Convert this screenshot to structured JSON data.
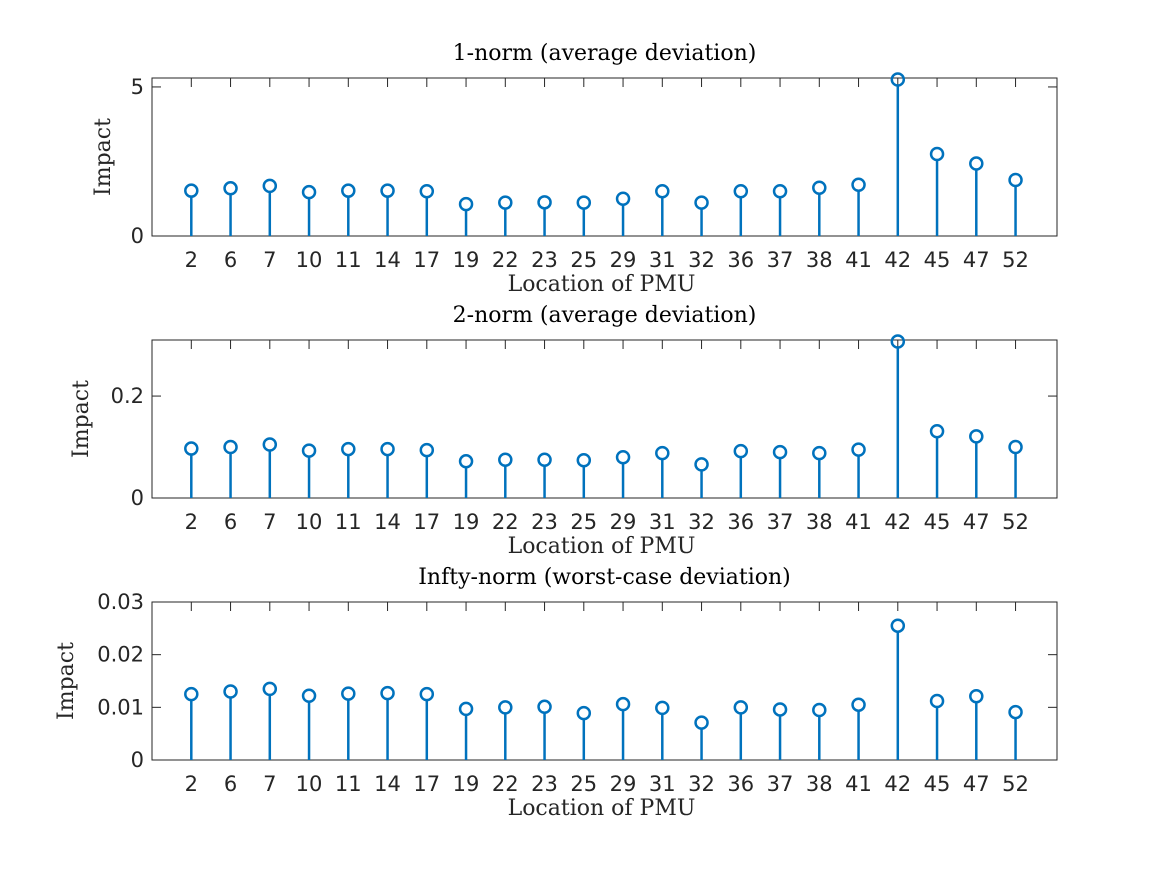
{
  "chart_data": [
    {
      "type": "stem",
      "title": "1-norm (average deviation)",
      "xlabel": "Location of PMU",
      "ylabel": "Impact",
      "categories": [
        "2",
        "6",
        "7",
        "10",
        "11",
        "14",
        "17",
        "19",
        "22",
        "23",
        "25",
        "29",
        "31",
        "32",
        "36",
        "37",
        "38",
        "41",
        "42",
        "45",
        "47",
        "52"
      ],
      "values": [
        1.52,
        1.6,
        1.68,
        1.47,
        1.52,
        1.52,
        1.5,
        1.07,
        1.12,
        1.13,
        1.12,
        1.25,
        1.5,
        1.12,
        1.5,
        1.5,
        1.62,
        1.72,
        5.25,
        2.75,
        2.43,
        1.88
      ],
      "ylim": [
        0,
        5.3
      ],
      "yticks": [
        0,
        5
      ],
      "ytick_labels": [
        "0",
        "5"
      ],
      "color": "#0072bd"
    },
    {
      "type": "stem",
      "title": "2-norm (average deviation)",
      "xlabel": "Location of PMU",
      "ylabel": "Impact",
      "categories": [
        "2",
        "6",
        "7",
        "10",
        "11",
        "14",
        "17",
        "19",
        "22",
        "23",
        "25",
        "29",
        "31",
        "32",
        "36",
        "37",
        "38",
        "41",
        "42",
        "45",
        "47",
        "52"
      ],
      "values": [
        0.097,
        0.1,
        0.105,
        0.093,
        0.096,
        0.096,
        0.094,
        0.072,
        0.075,
        0.075,
        0.074,
        0.08,
        0.088,
        0.066,
        0.092,
        0.09,
        0.088,
        0.095,
        0.307,
        0.131,
        0.121,
        0.1
      ],
      "ylim": [
        0,
        0.31
      ],
      "yticks": [
        0,
        0.2
      ],
      "ytick_labels": [
        "0",
        "0.2"
      ],
      "color": "#0072bd"
    },
    {
      "type": "stem",
      "title": "Infty-norm (worst-case deviation)",
      "xlabel": "Location of PMU",
      "ylabel": "Impact",
      "categories": [
        "2",
        "6",
        "7",
        "10",
        "11",
        "14",
        "17",
        "19",
        "22",
        "23",
        "25",
        "29",
        "31",
        "32",
        "36",
        "37",
        "38",
        "41",
        "42",
        "45",
        "47",
        "52"
      ],
      "values": [
        0.0125,
        0.013,
        0.0135,
        0.0122,
        0.0126,
        0.0127,
        0.0125,
        0.0097,
        0.01,
        0.0101,
        0.0089,
        0.0106,
        0.0099,
        0.0071,
        0.01,
        0.0096,
        0.0095,
        0.0105,
        0.0255,
        0.0112,
        0.0121,
        0.0091
      ],
      "ylim": [
        0,
        0.03
      ],
      "yticks": [
        0,
        0.01,
        0.02,
        0.03
      ],
      "ytick_labels": [
        "0",
        "0.01",
        "0.02",
        "0.03"
      ],
      "color": "#0072bd"
    }
  ]
}
